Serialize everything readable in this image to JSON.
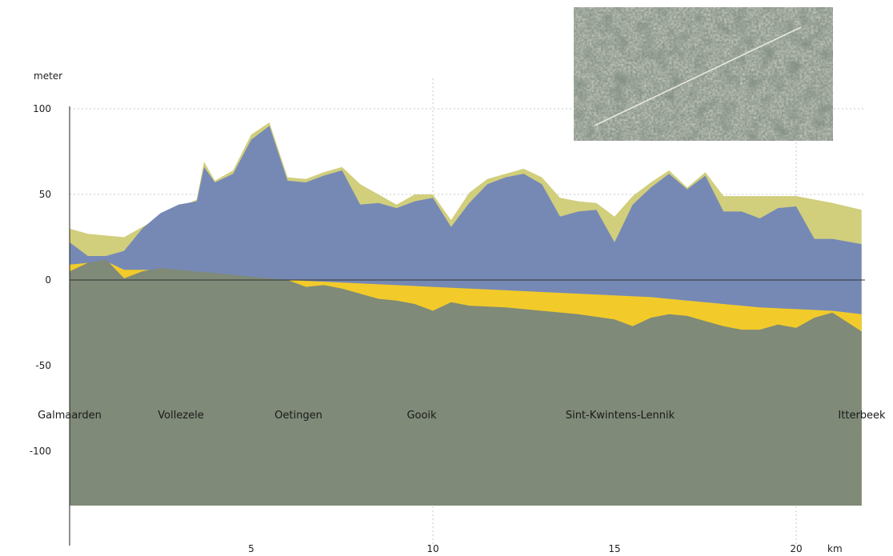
{
  "chart_data": {
    "type": "area",
    "ylabel": "meter",
    "xlabel": "km",
    "xlim": [
      0,
      21.8
    ],
    "ylim": [
      -130,
      100
    ],
    "x_ticks": [
      "5",
      "10",
      "15",
      "20"
    ],
    "y_ticks": [
      "100",
      "50",
      "0",
      "-50",
      "-100"
    ],
    "grid": "dotted, x at 10 and 20, y at 50 and 100",
    "places": [
      "Galmaarden",
      "Vollezele",
      "Oetingen",
      "Gooik",
      "Sint-Kwintens-Lennik",
      "Itterbeek"
    ],
    "colors": {
      "surface_layer": "#d1ce7c",
      "blue_layer": "#7689b5",
      "yellow_layer": "#f2cb2a",
      "green_layer": "#7f8a78",
      "zero_line": "#333333"
    },
    "series": [
      {
        "x": [
          0,
          0.5,
          1,
          1.5,
          2,
          2.5,
          3,
          3.5,
          3.7,
          4,
          4.5,
          5,
          5.5,
          6,
          6.5,
          7,
          7.5,
          8,
          8.5,
          9,
          9.5,
          10,
          10.5,
          11,
          11.5,
          12,
          12.5,
          13,
          13.5,
          14,
          14.5,
          15,
          15.5,
          16,
          16.5,
          17,
          17.5,
          18,
          18.5,
          19,
          19.5,
          20,
          20.5,
          21,
          21.8
        ],
        "y": [
          30,
          27,
          26,
          25,
          31,
          37,
          42,
          47,
          69,
          58,
          64,
          85,
          92,
          60,
          59,
          63,
          66,
          56,
          50,
          44,
          50,
          50,
          35,
          51,
          59,
          62,
          65,
          60,
          48,
          46,
          45,
          37,
          49,
          57,
          64,
          54,
          63,
          49,
          49,
          49,
          49,
          49,
          47,
          45,
          41
        ]
      },
      {
        "x": [
          0,
          0.5,
          1,
          1.5,
          2,
          2.5,
          3,
          3.5,
          3.7,
          4,
          4.5,
          5,
          5.5,
          6,
          6.5,
          7,
          7.5,
          8,
          8.5,
          9,
          9.5,
          10,
          10.5,
          11,
          11.5,
          12,
          12.5,
          13,
          13.5,
          14,
          14.5,
          15,
          15.5,
          16,
          16.5,
          17,
          17.5,
          18,
          18.5,
          19,
          19.5,
          20,
          20.5,
          21,
          21.8
        ],
        "y": [
          22,
          14,
          14,
          17,
          30,
          39,
          44,
          46,
          66,
          57,
          62,
          82,
          90,
          58,
          57,
          61,
          64,
          44,
          45,
          42,
          46,
          48,
          31,
          45,
          56,
          60,
          62,
          56,
          37,
          40,
          41,
          22,
          44,
          54,
          62,
          53,
          61,
          40,
          40,
          36,
          42,
          43,
          24,
          24,
          21
        ]
      },
      {
        "x": [
          0,
          0.5,
          1,
          1.5,
          2,
          3,
          4,
          5,
          6,
          7,
          8,
          9,
          10,
          11,
          12,
          13,
          14,
          15,
          16,
          17,
          18,
          19,
          20,
          21,
          21.8
        ],
        "y": [
          9,
          10,
          11,
          6,
          6,
          5,
          3,
          1,
          0,
          -1,
          -2,
          -3,
          -4,
          -5,
          -6,
          -7,
          -8,
          -9,
          -10,
          -12,
          -14,
          -16,
          -17,
          -18,
          -20
        ]
      },
      {
        "x": [
          0,
          0.5,
          1,
          1.5,
          2,
          2.5,
          3,
          4,
          5,
          6,
          6.5,
          7,
          7.5,
          8,
          8.5,
          9,
          9.5,
          10,
          10.5,
          11,
          12,
          13,
          14,
          15,
          15.5,
          16,
          16.5,
          17,
          17.5,
          18,
          18.5,
          19,
          19.5,
          20,
          20.5,
          21,
          21.8
        ],
        "y": [
          5,
          10,
          12,
          1,
          5,
          7,
          6,
          4,
          2,
          0,
          -4,
          -3,
          -5,
          -8,
          -11,
          -12,
          -14,
          -18,
          -13,
          -15,
          -16,
          -18,
          -20,
          -23,
          -27,
          -22,
          -20,
          -21,
          -24,
          -27,
          -29,
          -29,
          -26,
          -28,
          -22,
          -19,
          -30
        ]
      }
    ]
  },
  "inset": {
    "kind": "aerial-photo-route",
    "track_color": "#e8e8e0"
  }
}
